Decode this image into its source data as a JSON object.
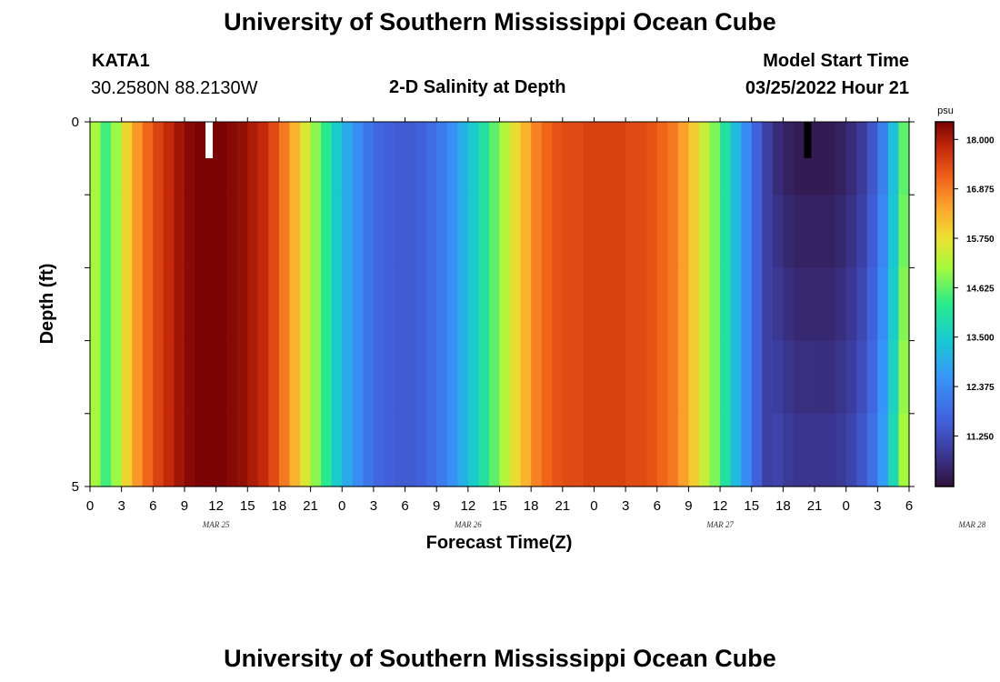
{
  "page": {
    "title": "University of Southern Mississippi Ocean Cube",
    "bottom_title": "University of Southern Mississippi Ocean Cube"
  },
  "header": {
    "station": "KATA1",
    "coords": "30.2580N  88.2130W",
    "chart_title": "2-D Salinity at Depth",
    "model_start_label": "Model Start Time",
    "model_start_value": "03/25/2022 Hour 21"
  },
  "colorbar": {
    "unit": "psu",
    "tick_labels": [
      "18.000",
      "16.875",
      "15.750",
      "14.625",
      "13.500",
      "12.375",
      "11.250"
    ],
    "tick_values": [
      18.0,
      16.875,
      15.75,
      14.625,
      13.5,
      12.375,
      11.25
    ],
    "min": 10.1,
    "max": 18.4
  },
  "chart_data": {
    "type": "heatmap",
    "title": "2-D Salinity at Depth",
    "xlabel": "Forecast Time(Z)",
    "ylabel": "Depth (ft)",
    "x_tick_labels": [
      "0",
      "3",
      "6",
      "9",
      "12",
      "15",
      "18",
      "21",
      "0",
      "3",
      "6",
      "9",
      "12",
      "15",
      "18",
      "21",
      "0",
      "3",
      "6",
      "9",
      "12",
      "15",
      "18",
      "21",
      "0",
      "3",
      "6"
    ],
    "date_labels": [
      {
        "label": "MAR 25",
        "at_hour": 12
      },
      {
        "label": "MAR 26",
        "at_hour": 36
      },
      {
        "label": "MAR 27",
        "at_hour": 60
      },
      {
        "label": "MAR 28",
        "at_hour": 84
      }
    ],
    "x_range_hours": [
      0,
      78
    ],
    "y_tick_labels": [
      "0",
      "5"
    ],
    "ylim": [
      0,
      5
    ],
    "depth_layers": 5,
    "column_salinity": [
      15.1,
      14.4,
      15.0,
      15.9,
      16.6,
      17.1,
      17.5,
      17.8,
      18.1,
      18.3,
      18.4,
      18.4,
      18.4,
      18.3,
      18.2,
      18.0,
      17.8,
      17.4,
      16.9,
      16.3,
      15.6,
      14.9,
      14.2,
      13.5,
      12.9,
      12.4,
      12.0,
      11.7,
      11.6,
      11.5,
      11.5,
      11.6,
      11.8,
      12.1,
      12.5,
      13.0,
      13.5,
      14.0,
      14.6,
      15.2,
      15.8,
      16.3,
      16.8,
      17.1,
      17.3,
      17.4,
      17.4,
      17.5,
      17.5,
      17.5,
      17.5,
      17.4,
      17.4,
      17.3,
      17.1,
      16.9,
      16.5,
      16.0,
      15.4,
      14.8,
      14.0,
      13.2,
      12.4,
      11.6,
      11.0,
      10.6,
      10.4,
      10.3,
      10.3,
      10.3,
      10.3,
      10.4,
      10.6,
      10.9,
      11.4,
      12.2,
      13.3,
      14.6
    ],
    "surface_anomaly_columns": [
      {
        "hour": 11,
        "salinity": "above-range"
      },
      {
        "hour": 68,
        "salinity": 10.0
      }
    ]
  }
}
